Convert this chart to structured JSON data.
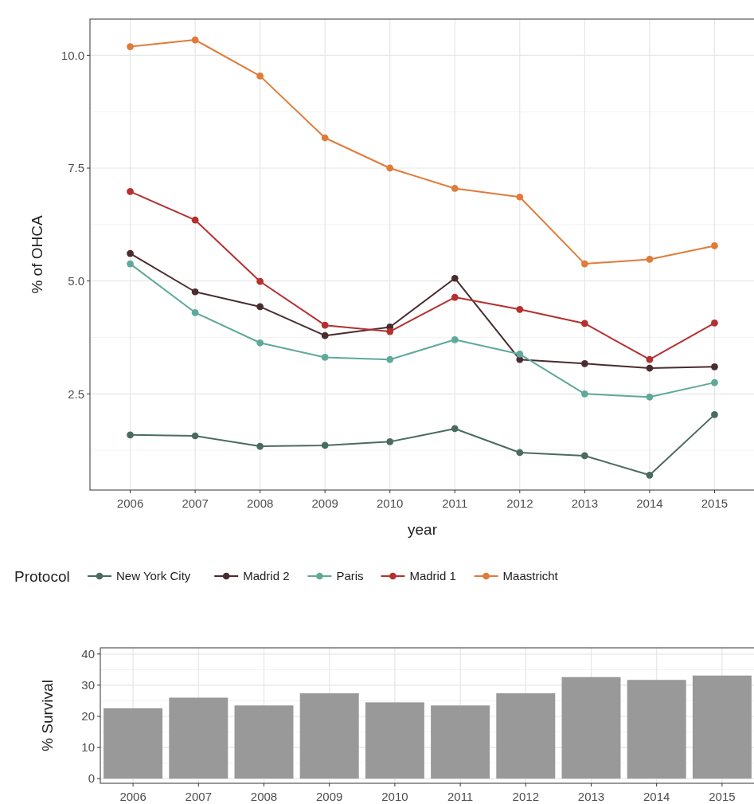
{
  "chart_data": [
    {
      "type": "line",
      "xlabel": "year",
      "ylabel": "% of OHCA",
      "legend_title": "Protocol",
      "legend": "bottom",
      "grid": true,
      "marker": "circle",
      "categories": [
        "2006",
        "2007",
        "2008",
        "2009",
        "2010",
        "2011",
        "2012",
        "2013",
        "2014",
        "2015"
      ],
      "ylim": [
        0.37,
        10.8
      ],
      "yticks": [
        {
          "value": 2.5,
          "label": "2.5"
        },
        {
          "value": 5,
          "label": "5.0"
        },
        {
          "value": 7.5,
          "label": "7.5"
        },
        {
          "value": 10,
          "label": "10.0"
        }
      ],
      "series": [
        {
          "name": "New York City",
          "color": "#4a6b60",
          "values": [
            1.59,
            1.57,
            1.34,
            1.36,
            1.44,
            1.73,
            1.2,
            1.13,
            0.7,
            2.04
          ]
        },
        {
          "name": "Madrid 2",
          "color": "#4a2c2e",
          "values": [
            5.61,
            4.76,
            4.43,
            3.79,
            3.98,
            5.06,
            3.26,
            3.17,
            3.07,
            3.1
          ]
        },
        {
          "name": "Paris",
          "color": "#5fa99a",
          "values": [
            5.38,
            4.3,
            3.63,
            3.31,
            3.26,
            3.7,
            3.38,
            2.5,
            2.43,
            2.75
          ]
        },
        {
          "name": "Madrid 1",
          "color": "#b5302f",
          "values": [
            6.98,
            6.35,
            4.99,
            4.02,
            3.88,
            4.64,
            4.37,
            4.06,
            3.26,
            4.07
          ]
        },
        {
          "name": "Maastricht",
          "color": "#e07b39",
          "values": [
            10.19,
            10.34,
            9.54,
            8.17,
            7.5,
            7.05,
            6.86,
            5.38,
            5.48,
            5.78
          ]
        }
      ]
    },
    {
      "type": "bar",
      "ylabel": "% Survival",
      "grid": true,
      "categories": [
        "2006",
        "2007",
        "2008",
        "2009",
        "2010",
        "2011",
        "2012",
        "2013",
        "2014",
        "2015"
      ],
      "ylim": [
        -1.5,
        42
      ],
      "yticks": [
        0,
        10,
        20,
        30,
        40
      ],
      "color": "#999999",
      "values": [
        22.6,
        26.0,
        23.5,
        27.4,
        24.5,
        23.5,
        27.4,
        32.6,
        31.7,
        33.1
      ]
    }
  ]
}
